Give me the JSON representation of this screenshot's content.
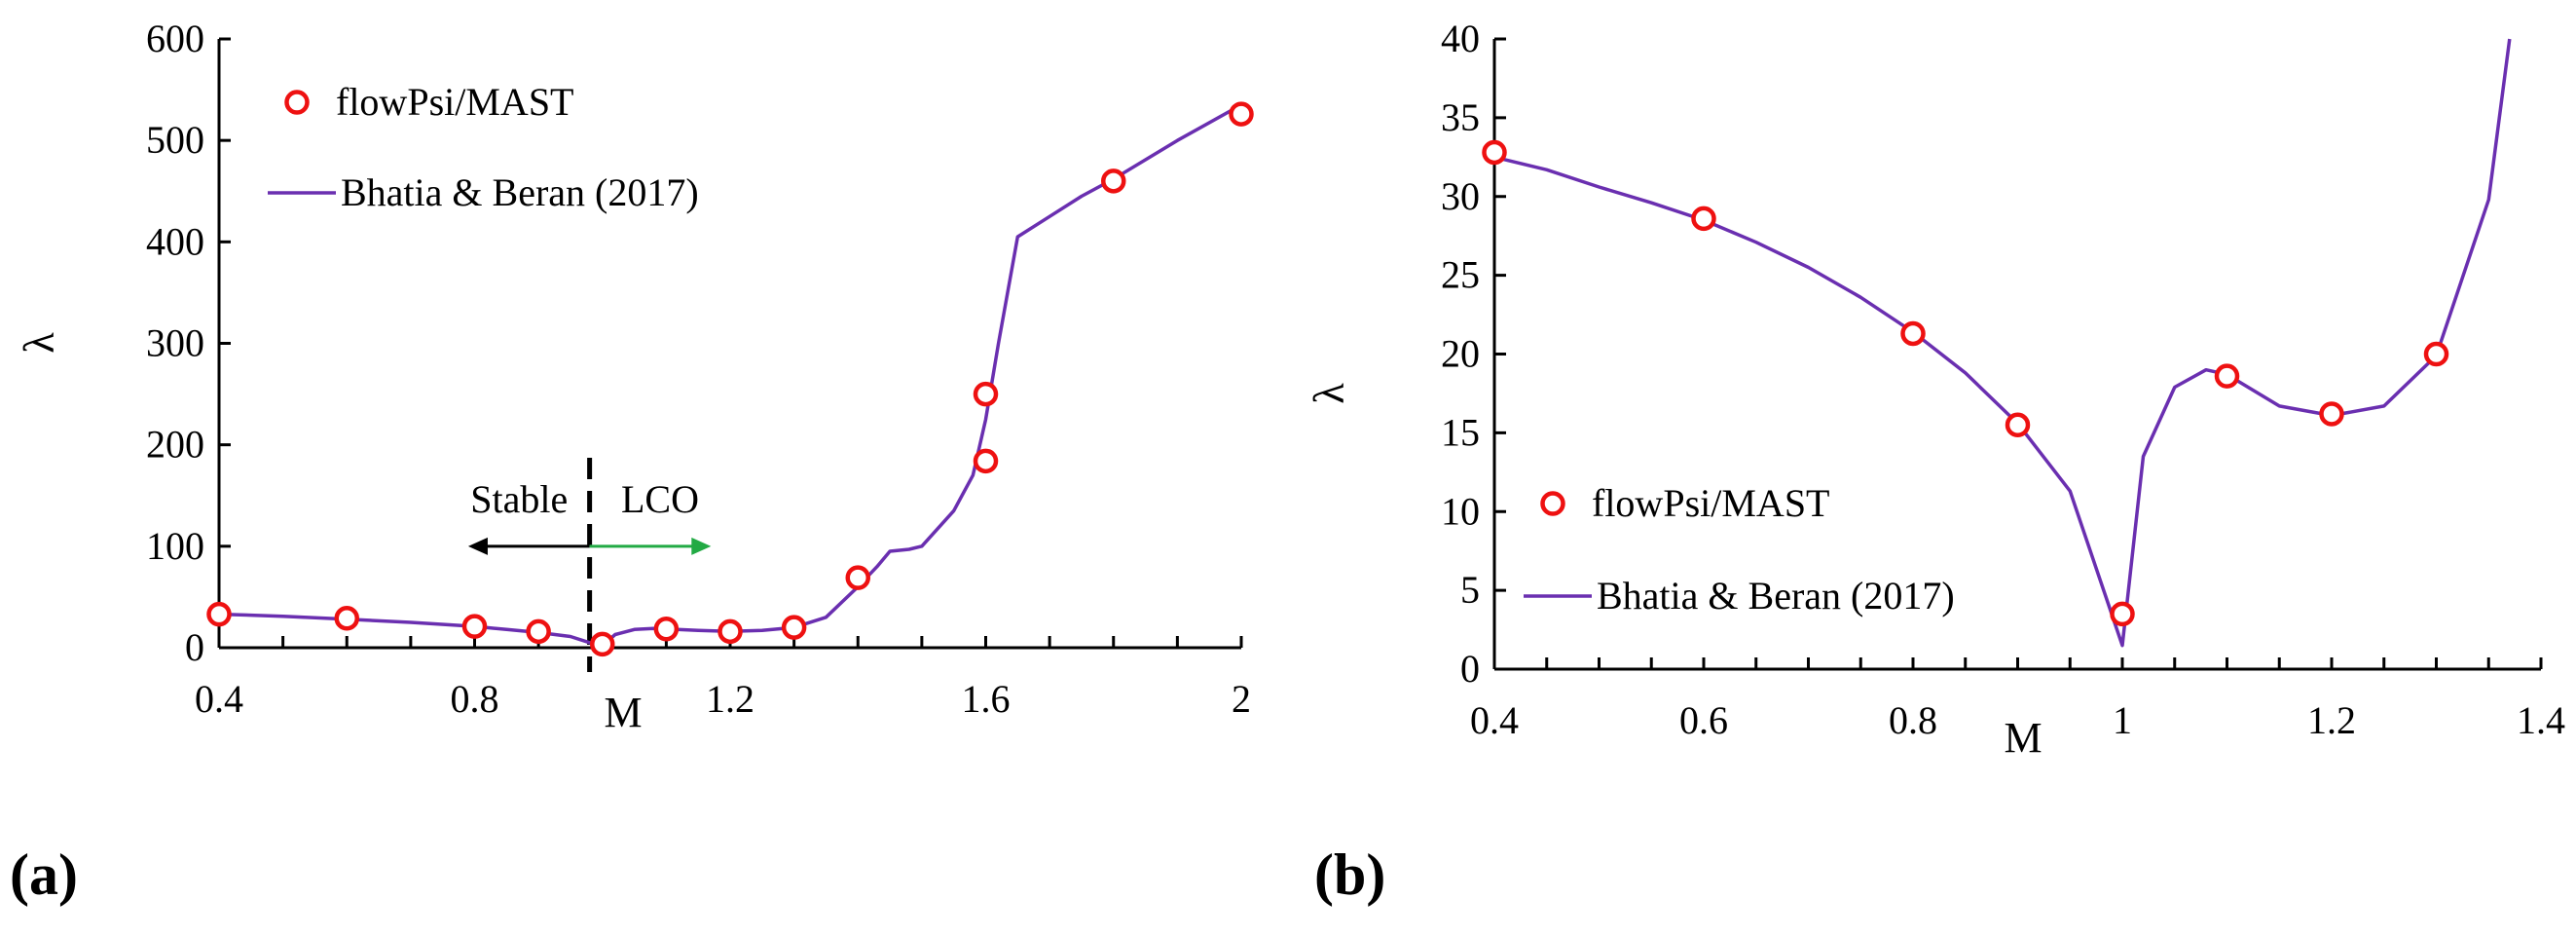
{
  "chart_data": [
    {
      "type": "line",
      "panel": "(a)",
      "xlabel": "M",
      "ylabel": "λ",
      "xlim": [
        0.4,
        2.0
      ],
      "ylim": [
        0,
        600
      ],
      "xticks": [
        {
          "value": 0.4,
          "label": "0.4"
        },
        {
          "value": 0.8,
          "label": "0.8"
        },
        {
          "value": 1.2,
          "label": "1.2"
        },
        {
          "value": 1.6,
          "label": "1.6"
        },
        {
          "value": 2.0,
          "label": "2"
        }
      ],
      "xminor": [
        0.5,
        0.6,
        0.7,
        0.9,
        1.0,
        1.1,
        1.3,
        1.4,
        1.5,
        1.7,
        1.8,
        1.9
      ],
      "yticks": [
        {
          "value": 0,
          "label": "0"
        },
        {
          "value": 100,
          "label": "100"
        },
        {
          "value": 200,
          "label": "200"
        },
        {
          "value": 300,
          "label": "300"
        },
        {
          "value": 400,
          "label": "400"
        },
        {
          "value": 500,
          "label": "500"
        },
        {
          "value": 600,
          "label": "600"
        }
      ],
      "series": [
        {
          "name": "Bhatia & Beran (2017)",
          "kind": "line",
          "color": "#6a2fb0",
          "x": [
            0.4,
            0.5,
            0.6,
            0.7,
            0.8,
            0.85,
            0.9,
            0.95,
            0.98,
            1.0,
            1.02,
            1.05,
            1.08,
            1.1,
            1.15,
            1.2,
            1.25,
            1.3,
            1.35,
            1.4,
            1.43,
            1.45,
            1.48,
            1.5,
            1.55,
            1.58,
            1.6,
            1.62,
            1.65,
            1.7,
            1.75,
            1.8,
            1.9,
            2.0
          ],
          "y": [
            33,
            31,
            28,
            25,
            21,
            18,
            15,
            11,
            5,
            2,
            13,
            18,
            19,
            18.5,
            17,
            16,
            17,
            20,
            30,
            60,
            80,
            95,
            97,
            100,
            135,
            170,
            225,
            300,
            405,
            425,
            445,
            462,
            500,
            535
          ]
        },
        {
          "name": "flowPsi/MAST",
          "kind": "markers",
          "color": "#ee1111",
          "x": [
            0.4,
            0.6,
            0.8,
            0.9,
            1.0,
            1.1,
            1.2,
            1.3,
            1.4,
            1.6,
            1.6,
            1.8,
            2.0
          ],
          "y": [
            33,
            29,
            21,
            16,
            3.5,
            18.5,
            16,
            20,
            69,
            184,
            250,
            460,
            526
          ]
        }
      ],
      "annotations": [
        {
          "text": "Stable",
          "arrow_from": 0.98,
          "arrow_to": 0.79,
          "arrow_y": 100,
          "color": "#000000"
        },
        {
          "text": "LCO",
          "arrow_from": 0.98,
          "arrow_to": 1.17,
          "arrow_y": 100,
          "color": "#22aa44"
        }
      ],
      "divider_x": 0.98,
      "legend": "top-left"
    },
    {
      "type": "line",
      "panel": "(b)",
      "xlabel": "M",
      "ylabel": "λ",
      "xlim": [
        0.4,
        1.4
      ],
      "ylim": [
        0,
        40
      ],
      "xticks": [
        {
          "value": 0.4,
          "label": "0.4"
        },
        {
          "value": 0.6,
          "label": "0.6"
        },
        {
          "value": 0.8,
          "label": "0.8"
        },
        {
          "value": 1.0,
          "label": "1"
        },
        {
          "value": 1.2,
          "label": "1.2"
        },
        {
          "value": 1.4,
          "label": "1.4"
        }
      ],
      "xminor": [
        0.45,
        0.5,
        0.55,
        0.65,
        0.7,
        0.75,
        0.85,
        0.9,
        0.95,
        1.05,
        1.1,
        1.15,
        1.25,
        1.3,
        1.35
      ],
      "yticks": [
        {
          "value": 0,
          "label": "0"
        },
        {
          "value": 5,
          "label": "5"
        },
        {
          "value": 10,
          "label": "10"
        },
        {
          "value": 15,
          "label": "15"
        },
        {
          "value": 20,
          "label": "20"
        },
        {
          "value": 25,
          "label": "25"
        },
        {
          "value": 30,
          "label": "30"
        },
        {
          "value": 35,
          "label": "35"
        },
        {
          "value": 40,
          "label": "40"
        }
      ],
      "series": [
        {
          "name": "Bhatia & Beran (2017)",
          "kind": "line",
          "color": "#6a2fb0",
          "x": [
            0.4,
            0.45,
            0.5,
            0.55,
            0.6,
            0.65,
            0.7,
            0.75,
            0.8,
            0.85,
            0.9,
            0.95,
            1.0,
            1.02,
            1.05,
            1.08,
            1.1,
            1.15,
            1.2,
            1.25,
            1.3,
            1.35,
            1.37
          ],
          "y": [
            32.5,
            31.7,
            30.6,
            29.6,
            28.5,
            27.1,
            25.5,
            23.6,
            21.4,
            18.8,
            15.6,
            11.3,
            1.5,
            13.5,
            17.9,
            19.0,
            18.7,
            16.7,
            16.1,
            16.7,
            19.9,
            29.8,
            40.0
          ]
        },
        {
          "name": "flowPsi/MAST",
          "kind": "markers",
          "color": "#ee1111",
          "x": [
            0.4,
            0.6,
            0.8,
            0.9,
            1.0,
            1.1,
            1.2,
            1.3
          ],
          "y": [
            32.8,
            28.6,
            21.3,
            15.5,
            3.5,
            18.6,
            16.2,
            20.0
          ]
        }
      ],
      "legend": "bottom-left"
    }
  ],
  "panel_labels": [
    "(a)",
    "(b)"
  ]
}
